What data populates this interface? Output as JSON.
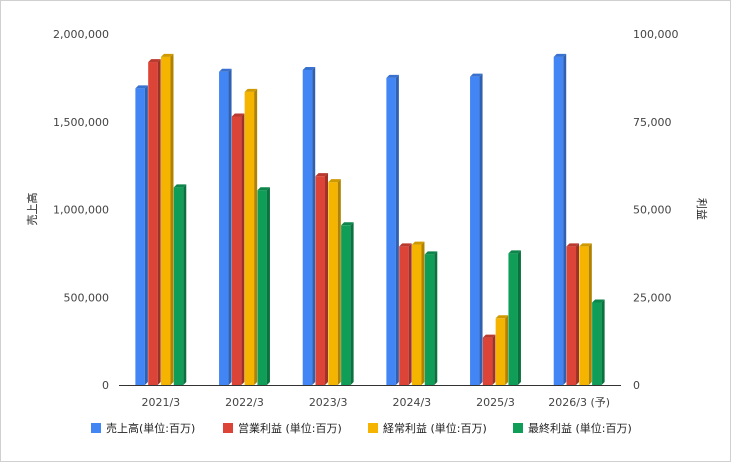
{
  "chart_data": {
    "type": "bar",
    "categories": [
      "2021/3",
      "2022/3",
      "2023/3",
      "2024/3",
      "2025/3",
      "2026/3 (予)"
    ],
    "series": [
      {
        "name": "売上高(単位:百万)",
        "axis": "left",
        "color": "#4285f4",
        "values": [
          1690000,
          1785000,
          1795000,
          1750000,
          1757000,
          1870000
        ]
      },
      {
        "name": "営業利益 (単位:百万)",
        "axis": "right",
        "color": "#db4437",
        "values": [
          92000,
          76500,
          59500,
          39500,
          13500,
          39500
        ]
      },
      {
        "name": "経常利益 (単位:百万)",
        "axis": "right",
        "color": "#f4b400",
        "values": [
          93500,
          83500,
          57800,
          40000,
          19000,
          39500
        ]
      },
      {
        "name": "最終利益 (単位:百万)",
        "axis": "right",
        "color": "#0f9d58",
        "values": [
          56300,
          55500,
          45500,
          37200,
          37500,
          23500
        ]
      }
    ],
    "ylabel": "売上高",
    "y2label": "利益",
    "ylim": [
      0,
      2000000
    ],
    "y2lim": [
      0,
      100000
    ],
    "yticks": [
      "0",
      "500,000",
      "1,000,000",
      "1,500,000",
      "2,000,000"
    ],
    "y2ticks": [
      "0",
      "25,000",
      "50,000",
      "75,000",
      "100,000"
    ],
    "legend_position": "bottom",
    "grid": false
  }
}
